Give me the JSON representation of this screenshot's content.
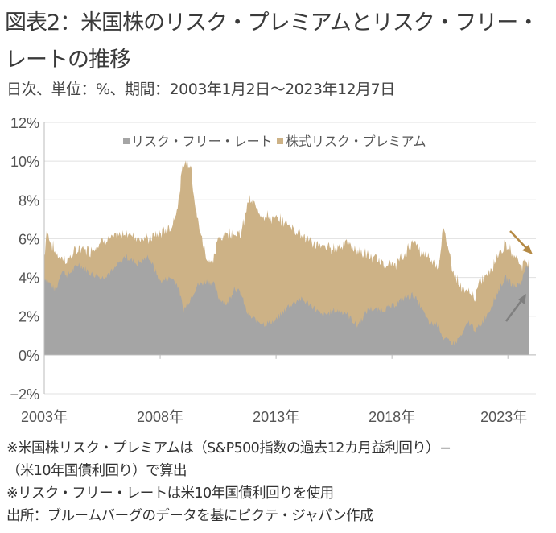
{
  "title_line1": "図表2：米国株のリスク・プレミアムとリスク・フリー・",
  "title_line2": "レートの推移",
  "subtitle": "日次、単位：%、期間：2003年1月2日～2023年12月7日",
  "notes": [
    "※米国株リスク・プレミアムは（S&P500指数の過去12カ月益利回り）−",
    "（米10年国債利回り）で算出",
    "※リスク・フリー・レートは米10年国債利回りを使用",
    "出所：ブルームバーグのデータを基にピクテ・ジャパン作成"
  ],
  "chart_data": {
    "type": "area",
    "stacked": true,
    "xlim": [
      2003.0,
      2023.93
    ],
    "ylim": [
      -2,
      12
    ],
    "yticks": [
      -2,
      0,
      2,
      4,
      6,
      8,
      10,
      12
    ],
    "ytick_labels": [
      "−2%",
      "0%",
      "2%",
      "4%",
      "6%",
      "8%",
      "10%",
      "12%"
    ],
    "xticks": [
      2003,
      2008,
      2013,
      2018,
      2023
    ],
    "xtick_labels": [
      "2003年",
      "2008年",
      "2013年",
      "2018年",
      "2023年"
    ],
    "grid": true,
    "legend_position": "top-center",
    "colors": {
      "risk_free": "#a5a5a5",
      "premium": "#cdb286",
      "arrow_down": "#b58a45",
      "arrow_up": "#7f7f7f"
    },
    "x": [
      2003.0,
      2003.1,
      2003.5,
      2003.75,
      2004.0,
      2004.5,
      2005.0,
      2005.5,
      2006.0,
      2006.5,
      2007.0,
      2007.5,
      2008.0,
      2008.5,
      2008.8,
      2009.0,
      2009.3,
      2009.6,
      2010.0,
      2010.3,
      2010.5,
      2010.9,
      2011.2,
      2011.5,
      2011.8,
      2012.5,
      2013.0,
      2013.5,
      2014.0,
      2014.5,
      2015.0,
      2015.5,
      2016.0,
      2016.5,
      2017.0,
      2017.5,
      2018.0,
      2018.5,
      2018.9,
      2019.2,
      2019.6,
      2020.0,
      2020.2,
      2020.4,
      2020.7,
      2021.0,
      2021.3,
      2021.6,
      2021.8,
      2022.2,
      2022.7,
      2022.9,
      2023.3,
      2023.6,
      2023.8,
      2023.93
    ],
    "series": [
      {
        "name": "リスク・フリー・レート",
        "values": [
          4.0,
          3.9,
          3.3,
          4.4,
          4.1,
          4.7,
          4.2,
          4.0,
          4.4,
          5.1,
          4.7,
          5.1,
          3.8,
          4.0,
          3.5,
          2.3,
          2.9,
          3.6,
          3.8,
          3.7,
          3.0,
          2.6,
          3.5,
          3.1,
          2.0,
          1.6,
          1.8,
          2.5,
          2.9,
          2.6,
          2.0,
          2.3,
          2.2,
          1.5,
          2.4,
          2.3,
          2.5,
          2.9,
          3.1,
          2.6,
          1.6,
          1.6,
          0.9,
          0.7,
          0.6,
          1.0,
          1.7,
          1.3,
          1.5,
          2.3,
          3.6,
          4.0,
          3.5,
          3.8,
          4.7,
          4.6
        ]
      },
      {
        "name": "株式リスク・プレミアム",
        "values": [
          1.0,
          2.5,
          1.9,
          0.6,
          0.8,
          0.8,
          1.2,
          1.9,
          1.6,
          1.2,
          1.4,
          0.9,
          2.5,
          2.6,
          4.5,
          7.6,
          7.0,
          3.4,
          1.2,
          1.1,
          3.0,
          3.7,
          2.8,
          3.1,
          6.0,
          5.6,
          5.2,
          4.3,
          3.4,
          3.2,
          3.6,
          3.2,
          3.6,
          3.9,
          2.7,
          2.5,
          2.1,
          2.1,
          2.9,
          2.7,
          3.4,
          3.0,
          5.7,
          4.8,
          3.6,
          2.4,
          1.5,
          1.7,
          2.3,
          2.0,
          1.9,
          1.6,
          1.7,
          0.8,
          0.2,
          0.2
        ]
      }
    ]
  }
}
